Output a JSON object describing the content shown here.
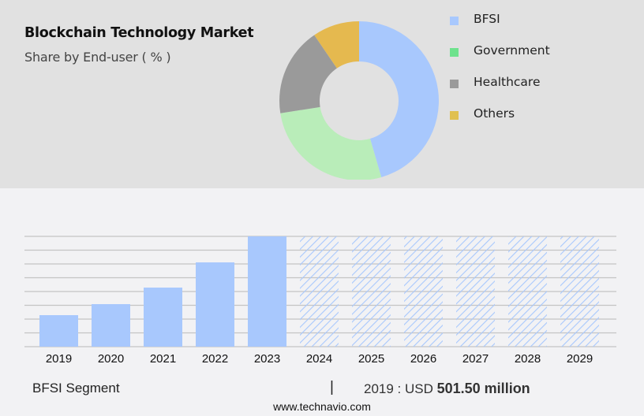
{
  "header": {
    "title": "Blockchain Technology Market",
    "subtitle": "Share by End-user ( % )"
  },
  "colors": {
    "bfsi": "#a8c8fd",
    "government": "#b9edb9",
    "healthcare": "#9a9a9a",
    "others": "#e5b94f",
    "legend_government": "#6ee28d",
    "legend_others": "#e0c050",
    "gridline": "#c4c4c4",
    "hatch": "#a8c8fd"
  },
  "chart_data": [
    {
      "type": "pie",
      "title": "Share by End-user ( % )",
      "donut": true,
      "categories": [
        "BFSI",
        "Government",
        "Healthcare",
        "Others"
      ],
      "values": [
        45.5,
        27.0,
        18.0,
        9.5
      ],
      "legend": {
        "position": "right",
        "entries": [
          "BFSI",
          "Government",
          "Healthcare",
          "Others"
        ]
      }
    },
    {
      "type": "bar",
      "title": "BFSI Segment",
      "categories": [
        "2019",
        "2020",
        "2021",
        "2022",
        "2023",
        "2024",
        "2025",
        "2026",
        "2027",
        "2028",
        "2029"
      ],
      "values": [
        501.5,
        677,
        940,
        1341,
        1755,
        null,
        null,
        null,
        null,
        null,
        null
      ],
      "forecast": [
        false,
        false,
        false,
        false,
        false,
        true,
        true,
        true,
        true,
        true,
        true
      ],
      "unit": "USD million",
      "xlabel": "",
      "ylabel": "",
      "ylim": [
        0,
        1755
      ],
      "grid": true,
      "gridlines": 9
    }
  ],
  "footer": {
    "segment_label": "BFSI Segment",
    "separator": "|",
    "value_prefix": "2019 : USD",
    "value_bold": "501.50 million",
    "source": "www.technavio.com"
  }
}
